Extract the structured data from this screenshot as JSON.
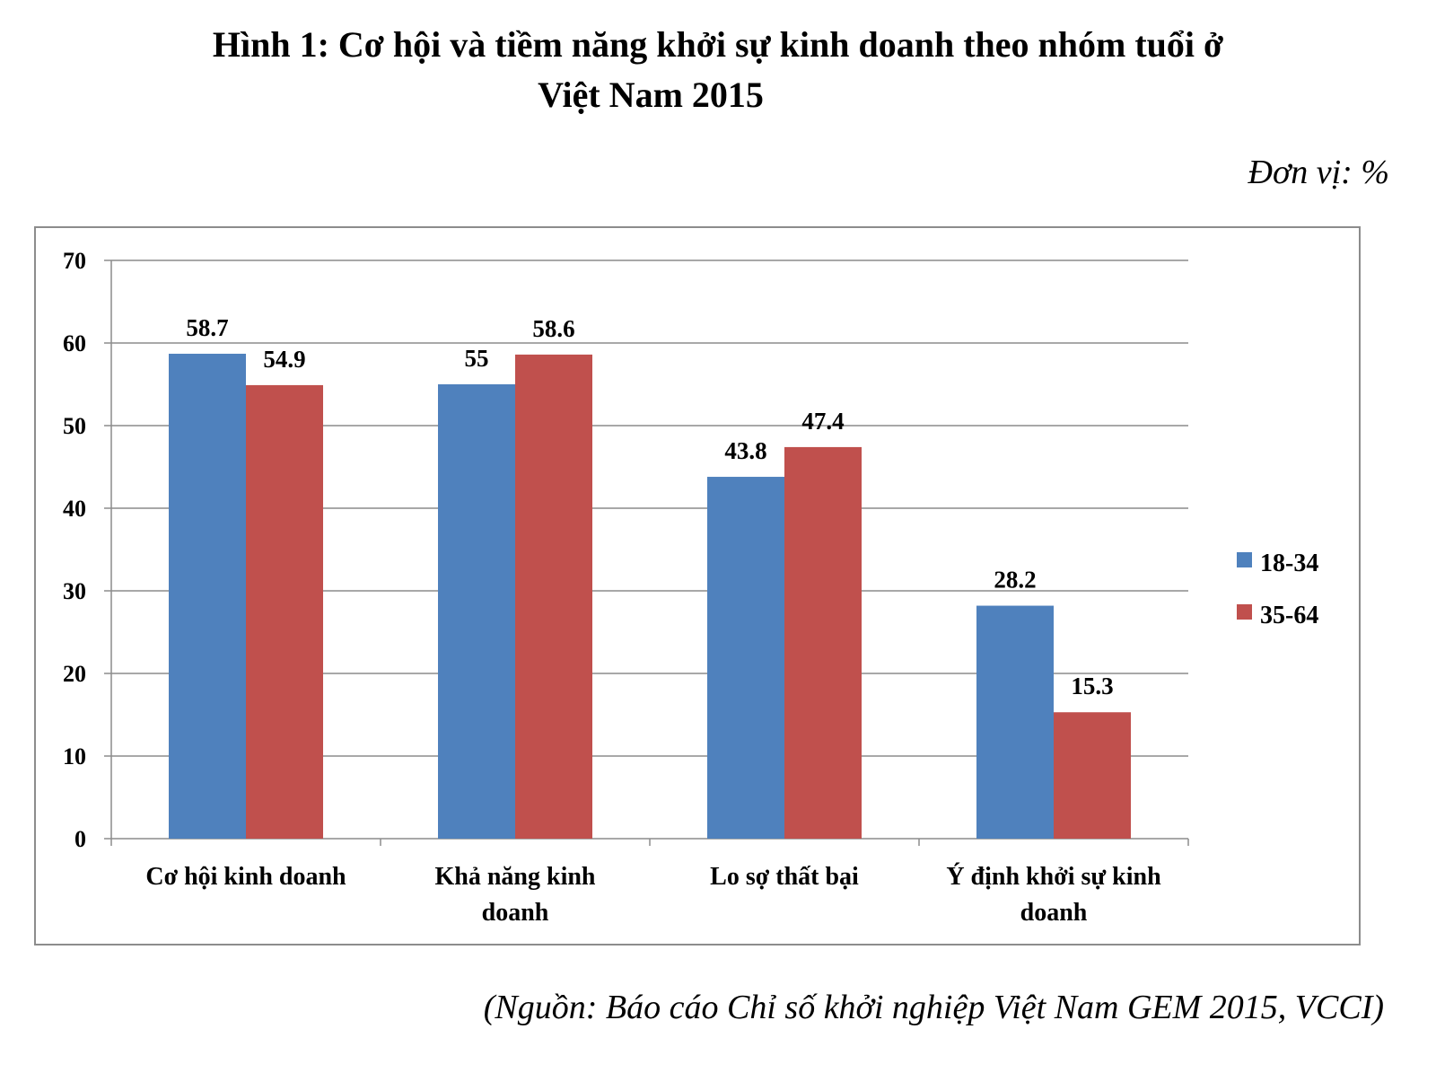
{
  "page": {
    "title_line1": "Hình 1: Cơ hội và tiềm năng khởi sự kinh doanh theo nhóm tuổi ở",
    "title_line2": "Việt Nam 2015",
    "unit": "Đơn vị: %",
    "source": "(Nguồn: Báo cáo Chỉ số khởi nghiệp Việt Nam GEM 2015, VCCI)"
  },
  "chart_data": {
    "type": "bar",
    "categories": [
      [
        "Cơ hội kinh doanh"
      ],
      [
        "Khả năng kinh",
        "doanh"
      ],
      [
        "Lo sợ thất bại"
      ],
      [
        "Ý định khởi sự kinh",
        "doanh"
      ]
    ],
    "series": [
      {
        "name": "18-34",
        "values": [
          58.7,
          55,
          43.8,
          28.2
        ],
        "color": "#4f81bd"
      },
      {
        "name": "35-64",
        "values": [
          54.9,
          58.6,
          47.4,
          15.3
        ],
        "color": "#c0504d"
      }
    ],
    "ylim": [
      0,
      70
    ],
    "yticks": [
      0,
      10,
      20,
      30,
      40,
      50,
      60,
      70
    ],
    "grid": true,
    "legend": "right"
  }
}
